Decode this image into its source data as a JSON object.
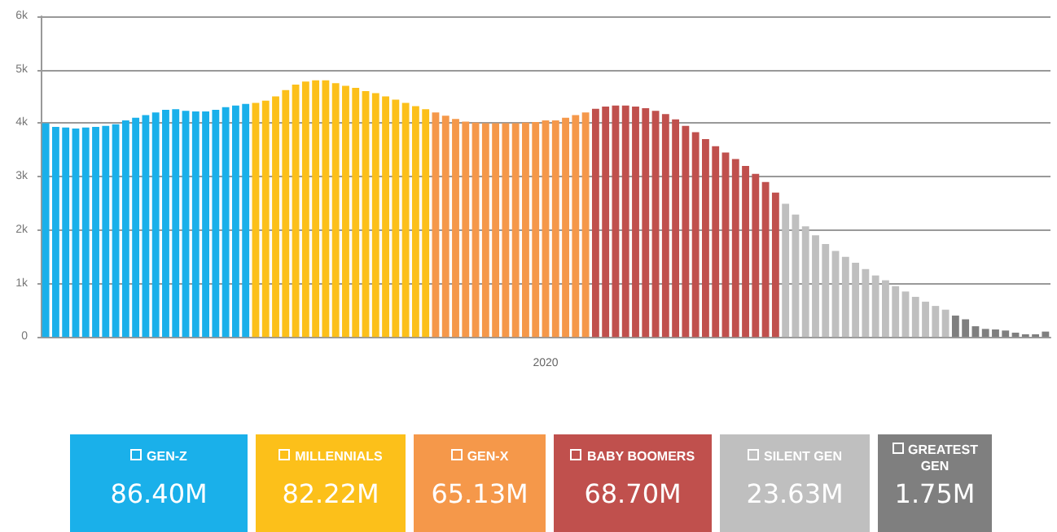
{
  "chart_data": {
    "type": "bar",
    "xlabel": "2020",
    "categories": [
      null,
      null,
      null,
      null,
      null,
      null,
      null,
      null,
      null,
      null,
      null,
      null,
      null,
      null,
      null,
      null,
      null,
      null,
      null,
      null,
      null,
      null,
      null,
      null,
      null,
      null,
      null,
      null,
      null,
      null,
      null,
      null,
      null,
      null,
      null,
      null,
      null,
      null,
      null,
      null,
      null,
      null,
      null,
      null,
      null,
      null,
      null,
      null,
      null,
      null,
      null,
      null,
      null,
      null,
      null,
      null,
      null,
      null,
      null,
      null,
      null,
      null,
      null,
      null,
      null,
      null,
      null,
      null,
      null,
      null,
      null,
      null,
      null,
      null,
      null,
      null,
      null,
      null,
      null,
      null,
      null,
      null,
      null,
      null,
      null,
      null,
      null,
      null,
      null,
      null,
      null,
      null,
      null,
      null,
      null,
      null,
      null,
      null,
      null,
      null,
      null
    ],
    "series": [
      {
        "name": "GEN-Z",
        "color": "#1ab0ea",
        "values": [
          4000,
          3930,
          3920,
          3900,
          3920,
          3930,
          3950,
          3980,
          4050,
          4100,
          4150,
          4200,
          4250,
          4260,
          4230,
          4220,
          4220,
          4250,
          4300,
          4330,
          4360,
          null,
          null,
          null,
          null,
          null,
          null,
          null,
          null,
          null,
          null,
          null,
          null,
          null,
          null,
          null,
          null,
          null,
          null,
          null,
          null,
          null,
          null,
          null,
          null,
          null,
          null,
          null,
          null,
          null,
          null,
          null,
          null,
          null,
          null,
          null,
          null,
          null,
          null,
          null,
          null,
          null,
          null,
          null,
          null,
          null,
          null,
          null,
          null,
          null,
          null,
          null,
          null,
          null,
          null,
          null,
          null,
          null,
          null,
          null,
          null,
          null,
          null,
          null,
          null,
          null,
          null,
          null,
          null,
          null,
          null,
          null,
          null,
          null,
          null,
          null,
          null,
          null,
          null,
          null,
          null
        ]
      },
      {
        "name": "MILLENNIALS",
        "color": "#fcc01a",
        "values": [
          null,
          null,
          null,
          null,
          null,
          null,
          null,
          null,
          null,
          null,
          null,
          null,
          null,
          null,
          null,
          null,
          null,
          null,
          null,
          null,
          null,
          4380,
          4420,
          4500,
          4620,
          4720,
          4780,
          4800,
          4800,
          4750,
          4700,
          4660,
          4600,
          4560,
          4500,
          4440,
          4380,
          4320,
          4260,
          null,
          null,
          null,
          null,
          null,
          null,
          null,
          null,
          null,
          null,
          null,
          null,
          null,
          null,
          null,
          null,
          null,
          null,
          null,
          null,
          null,
          null,
          null,
          null,
          null,
          null,
          null,
          null,
          null,
          null,
          null,
          null,
          null,
          null,
          null,
          null,
          null,
          null,
          null,
          null,
          null,
          null,
          null,
          null,
          null,
          null,
          null,
          null,
          null,
          null,
          null,
          null,
          null,
          null,
          null,
          null,
          null,
          null,
          null,
          null,
          null,
          null
        ]
      },
      {
        "name": "GEN-X",
        "color": "#f5984a",
        "values": [
          null,
          null,
          null,
          null,
          null,
          null,
          null,
          null,
          null,
          null,
          null,
          null,
          null,
          null,
          null,
          null,
          null,
          null,
          null,
          null,
          null,
          null,
          null,
          null,
          null,
          null,
          null,
          null,
          null,
          null,
          null,
          null,
          null,
          null,
          null,
          null,
          null,
          null,
          null,
          4200,
          4140,
          4080,
          4030,
          4010,
          4000,
          4000,
          4000,
          4000,
          4010,
          4020,
          4050,
          4050,
          4100,
          4150,
          4200,
          null,
          null,
          null,
          null,
          null,
          null,
          null,
          null,
          null,
          null,
          null,
          null,
          null,
          null,
          null,
          null,
          null,
          null,
          null,
          null,
          null,
          null,
          null,
          null,
          null,
          null,
          null,
          null,
          null,
          null,
          null,
          null,
          null,
          null,
          null,
          null,
          null,
          null,
          null,
          null,
          null,
          null,
          null,
          null,
          null,
          null
        ]
      },
      {
        "name": "BABY BOOMERS",
        "color": "#c0504d",
        "values": [
          null,
          null,
          null,
          null,
          null,
          null,
          null,
          null,
          null,
          null,
          null,
          null,
          null,
          null,
          null,
          null,
          null,
          null,
          null,
          null,
          null,
          null,
          null,
          null,
          null,
          null,
          null,
          null,
          null,
          null,
          null,
          null,
          null,
          null,
          null,
          null,
          null,
          null,
          null,
          null,
          null,
          null,
          null,
          null,
          null,
          null,
          null,
          null,
          null,
          null,
          null,
          null,
          null,
          null,
          null,
          4270,
          4310,
          4330,
          4330,
          4310,
          4280,
          4230,
          4170,
          4070,
          3950,
          3830,
          3700,
          3570,
          3450,
          3330,
          3200,
          3050,
          2900,
          2700,
          null,
          null,
          null,
          null,
          null,
          null,
          null,
          null,
          null,
          null,
          null,
          null,
          null,
          null,
          null,
          null,
          null,
          null,
          null,
          null,
          null,
          null,
          null,
          null,
          null,
          null,
          null
        ]
      },
      {
        "name": "SILENT GEN",
        "color": "#bfbfbf",
        "values": [
          null,
          null,
          null,
          null,
          null,
          null,
          null,
          null,
          null,
          null,
          null,
          null,
          null,
          null,
          null,
          null,
          null,
          null,
          null,
          null,
          null,
          null,
          null,
          null,
          null,
          null,
          null,
          null,
          null,
          null,
          null,
          null,
          null,
          null,
          null,
          null,
          null,
          null,
          null,
          null,
          null,
          null,
          null,
          null,
          null,
          null,
          null,
          null,
          null,
          null,
          null,
          null,
          null,
          null,
          null,
          null,
          null,
          null,
          null,
          null,
          null,
          null,
          null,
          null,
          null,
          null,
          null,
          null,
          null,
          null,
          null,
          null,
          null,
          null,
          2490,
          2290,
          2070,
          1900,
          1740,
          1610,
          1500,
          1390,
          1270,
          1150,
          1060,
          950,
          850,
          750,
          660,
          580,
          510,
          null,
          null,
          null,
          null,
          null,
          null,
          null,
          null,
          null,
          null
        ]
      },
      {
        "name": "GREATEST GEN",
        "color": "#7f7f7f",
        "values": [
          null,
          null,
          null,
          null,
          null,
          null,
          null,
          null,
          null,
          null,
          null,
          null,
          null,
          null,
          null,
          null,
          null,
          null,
          null,
          null,
          null,
          null,
          null,
          null,
          null,
          null,
          null,
          null,
          null,
          null,
          null,
          null,
          null,
          null,
          null,
          null,
          null,
          null,
          null,
          null,
          null,
          null,
          null,
          null,
          null,
          null,
          null,
          null,
          null,
          null,
          null,
          null,
          null,
          null,
          null,
          null,
          null,
          null,
          null,
          null,
          null,
          null,
          null,
          null,
          null,
          null,
          null,
          null,
          null,
          null,
          null,
          null,
          null,
          null,
          null,
          null,
          null,
          null,
          null,
          null,
          null,
          null,
          null,
          null,
          null,
          null,
          null,
          null,
          null,
          null,
          null,
          400,
          330,
          200,
          150,
          140,
          120,
          80,
          50,
          50,
          100
        ]
      }
    ],
    "stacked": true,
    "annotations": [
      "86.40M",
      "82.22M",
      "65.13M",
      "68.70M",
      "23.63M",
      "1.75M"
    ],
    "ylim": [
      0,
      6000
    ],
    "yticks": [
      0,
      {
        "value": 1000,
        "label": "1k"
      },
      {
        "value": 2000,
        "label": "2k"
      },
      {
        "value": 3000,
        "label": "3k"
      },
      {
        "value": 4000,
        "label": "4k"
      },
      {
        "value": 5000,
        "label": "5k"
      },
      {
        "value": 6000,
        "label": "6k"
      }
    ],
    "grid": "y",
    "legend": "bottom"
  }
}
